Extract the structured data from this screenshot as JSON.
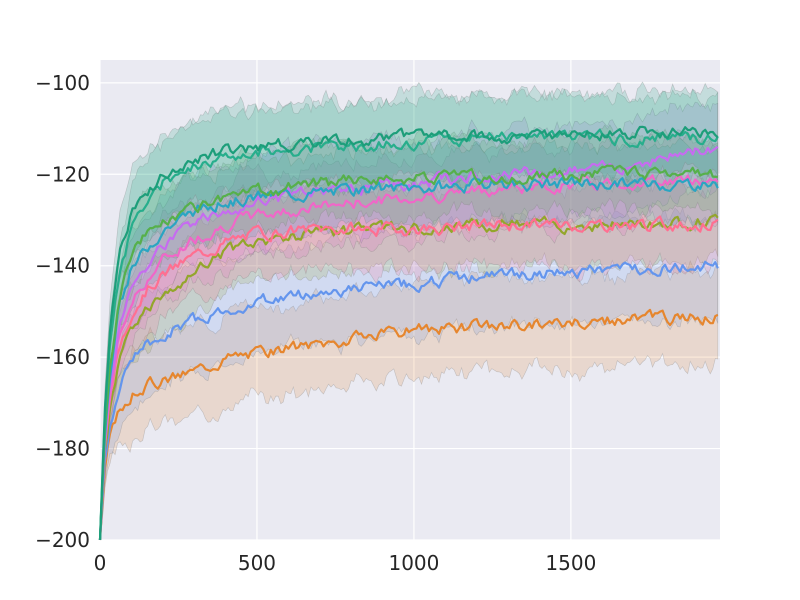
{
  "chart_data": {
    "type": "line",
    "title": "",
    "xlabel": "",
    "ylabel": "",
    "xlim": [
      0,
      1975
    ],
    "ylim": [
      -200,
      -95
    ],
    "grid": true,
    "style": "seaborn-darkgrid",
    "background_color": "#eaeaf2",
    "grid_color": "#ffffff",
    "x_ticks": [
      0,
      500,
      1000,
      1500
    ],
    "y_ticks": [
      -200,
      -180,
      -160,
      -140,
      -120,
      -100
    ],
    "x_tick_labels": [
      "0",
      "500",
      "1000",
      "1500"
    ],
    "y_tick_labels": [
      "−200",
      "−180",
      "−160",
      "−140",
      "−120",
      "−100"
    ],
    "series": [
      {
        "color": "#e6862e",
        "band_halfwidth": 10,
        "points": [
          [
            0,
            -200
          ],
          [
            15,
            -185
          ],
          [
            30,
            -178
          ],
          [
            60,
            -172
          ],
          [
            100,
            -168
          ],
          [
            150,
            -166
          ],
          [
            200,
            -165
          ],
          [
            300,
            -163
          ],
          [
            400,
            -160
          ],
          [
            500,
            -159
          ],
          [
            700,
            -157
          ],
          [
            1000,
            -154
          ],
          [
            1300,
            -153
          ],
          [
            1600,
            -152
          ],
          [
            1975,
            -151
          ]
        ]
      },
      {
        "color": "#6495ed",
        "band_halfwidth": 11,
        "points": [
          [
            0,
            -200
          ],
          [
            15,
            -183
          ],
          [
            30,
            -176
          ],
          [
            60,
            -168
          ],
          [
            100,
            -160
          ],
          [
            150,
            -157
          ],
          [
            200,
            -155
          ],
          [
            300,
            -152
          ],
          [
            400,
            -150
          ],
          [
            500,
            -148
          ],
          [
            700,
            -146
          ],
          [
            1000,
            -144
          ],
          [
            1300,
            -142
          ],
          [
            1600,
            -141
          ],
          [
            1975,
            -140
          ]
        ]
      },
      {
        "color": "#93a62b",
        "band_halfwidth": 9,
        "points": [
          [
            0,
            -200
          ],
          [
            15,
            -181
          ],
          [
            30,
            -172
          ],
          [
            60,
            -162
          ],
          [
            100,
            -154
          ],
          [
            150,
            -150
          ],
          [
            200,
            -146
          ],
          [
            300,
            -141
          ],
          [
            400,
            -137
          ],
          [
            500,
            -135
          ],
          [
            700,
            -133
          ],
          [
            1000,
            -132
          ],
          [
            1300,
            -131
          ],
          [
            1600,
            -131
          ],
          [
            1975,
            -130
          ]
        ]
      },
      {
        "color": "#ff6f91",
        "band_halfwidth": 9,
        "points": [
          [
            0,
            -200
          ],
          [
            15,
            -180
          ],
          [
            30,
            -170
          ],
          [
            60,
            -158
          ],
          [
            100,
            -150
          ],
          [
            150,
            -145
          ],
          [
            200,
            -142
          ],
          [
            300,
            -138
          ],
          [
            400,
            -135
          ],
          [
            500,
            -133
          ],
          [
            700,
            -132
          ],
          [
            1000,
            -132
          ],
          [
            1300,
            -131
          ],
          [
            1600,
            -131
          ],
          [
            1975,
            -131
          ]
        ]
      },
      {
        "color": "#f067c8",
        "band_halfwidth": 9,
        "points": [
          [
            0,
            -200
          ],
          [
            15,
            -180
          ],
          [
            30,
            -169
          ],
          [
            60,
            -156
          ],
          [
            100,
            -148
          ],
          [
            150,
            -143
          ],
          [
            200,
            -139
          ],
          [
            300,
            -134
          ],
          [
            400,
            -131
          ],
          [
            500,
            -129
          ],
          [
            700,
            -127
          ],
          [
            1000,
            -125
          ],
          [
            1300,
            -123
          ],
          [
            1600,
            -122
          ],
          [
            1975,
            -121
          ]
        ]
      },
      {
        "color": "#c66cf0",
        "band_halfwidth": 10,
        "points": [
          [
            0,
            -200
          ],
          [
            15,
            -179
          ],
          [
            30,
            -167
          ],
          [
            60,
            -153
          ],
          [
            100,
            -145
          ],
          [
            150,
            -140
          ],
          [
            200,
            -136
          ],
          [
            300,
            -131
          ],
          [
            400,
            -128
          ],
          [
            500,
            -126
          ],
          [
            700,
            -124
          ],
          [
            1000,
            -122
          ],
          [
            1300,
            -120
          ],
          [
            1600,
            -119
          ],
          [
            1975,
            -114
          ]
        ]
      },
      {
        "color": "#2aa5c2",
        "band_halfwidth": 8,
        "points": [
          [
            0,
            -200
          ],
          [
            15,
            -178
          ],
          [
            30,
            -165
          ],
          [
            60,
            -150
          ],
          [
            100,
            -141
          ],
          [
            150,
            -136
          ],
          [
            200,
            -132
          ],
          [
            300,
            -128
          ],
          [
            400,
            -126
          ],
          [
            500,
            -125
          ],
          [
            700,
            -124
          ],
          [
            1000,
            -123
          ],
          [
            1300,
            -122
          ],
          [
            1600,
            -122
          ],
          [
            1975,
            -122
          ]
        ]
      },
      {
        "color": "#56b04b",
        "band_halfwidth": 8,
        "points": [
          [
            0,
            -200
          ],
          [
            15,
            -176
          ],
          [
            30,
            -162
          ],
          [
            60,
            -147
          ],
          [
            100,
            -138
          ],
          [
            150,
            -133
          ],
          [
            200,
            -130
          ],
          [
            300,
            -127
          ],
          [
            400,
            -125
          ],
          [
            500,
            -124
          ],
          [
            700,
            -122
          ],
          [
            1000,
            -121
          ],
          [
            1300,
            -121
          ],
          [
            1600,
            -120
          ],
          [
            1975,
            -120
          ]
        ]
      },
      {
        "color": "#27ae8c",
        "band_halfwidth": 9,
        "points": [
          [
            0,
            -200
          ],
          [
            15,
            -174
          ],
          [
            30,
            -158
          ],
          [
            60,
            -142
          ],
          [
            100,
            -132
          ],
          [
            150,
            -126
          ],
          [
            200,
            -122
          ],
          [
            300,
            -118
          ],
          [
            400,
            -116
          ],
          [
            500,
            -115
          ],
          [
            700,
            -114
          ],
          [
            1000,
            -113
          ],
          [
            1300,
            -112
          ],
          [
            1600,
            -112
          ],
          [
            1975,
            -112
          ]
        ]
      },
      {
        "color": "#1d9e7a",
        "band_halfwidth": 9,
        "points": [
          [
            0,
            -200
          ],
          [
            15,
            -172
          ],
          [
            30,
            -155
          ],
          [
            60,
            -138
          ],
          [
            100,
            -129
          ],
          [
            150,
            -124
          ],
          [
            200,
            -120
          ],
          [
            300,
            -117
          ],
          [
            400,
            -115
          ],
          [
            500,
            -114
          ],
          [
            700,
            -113
          ],
          [
            1000,
            -112
          ],
          [
            1300,
            -112
          ],
          [
            1600,
            -111
          ],
          [
            1975,
            -111
          ]
        ]
      }
    ]
  }
}
